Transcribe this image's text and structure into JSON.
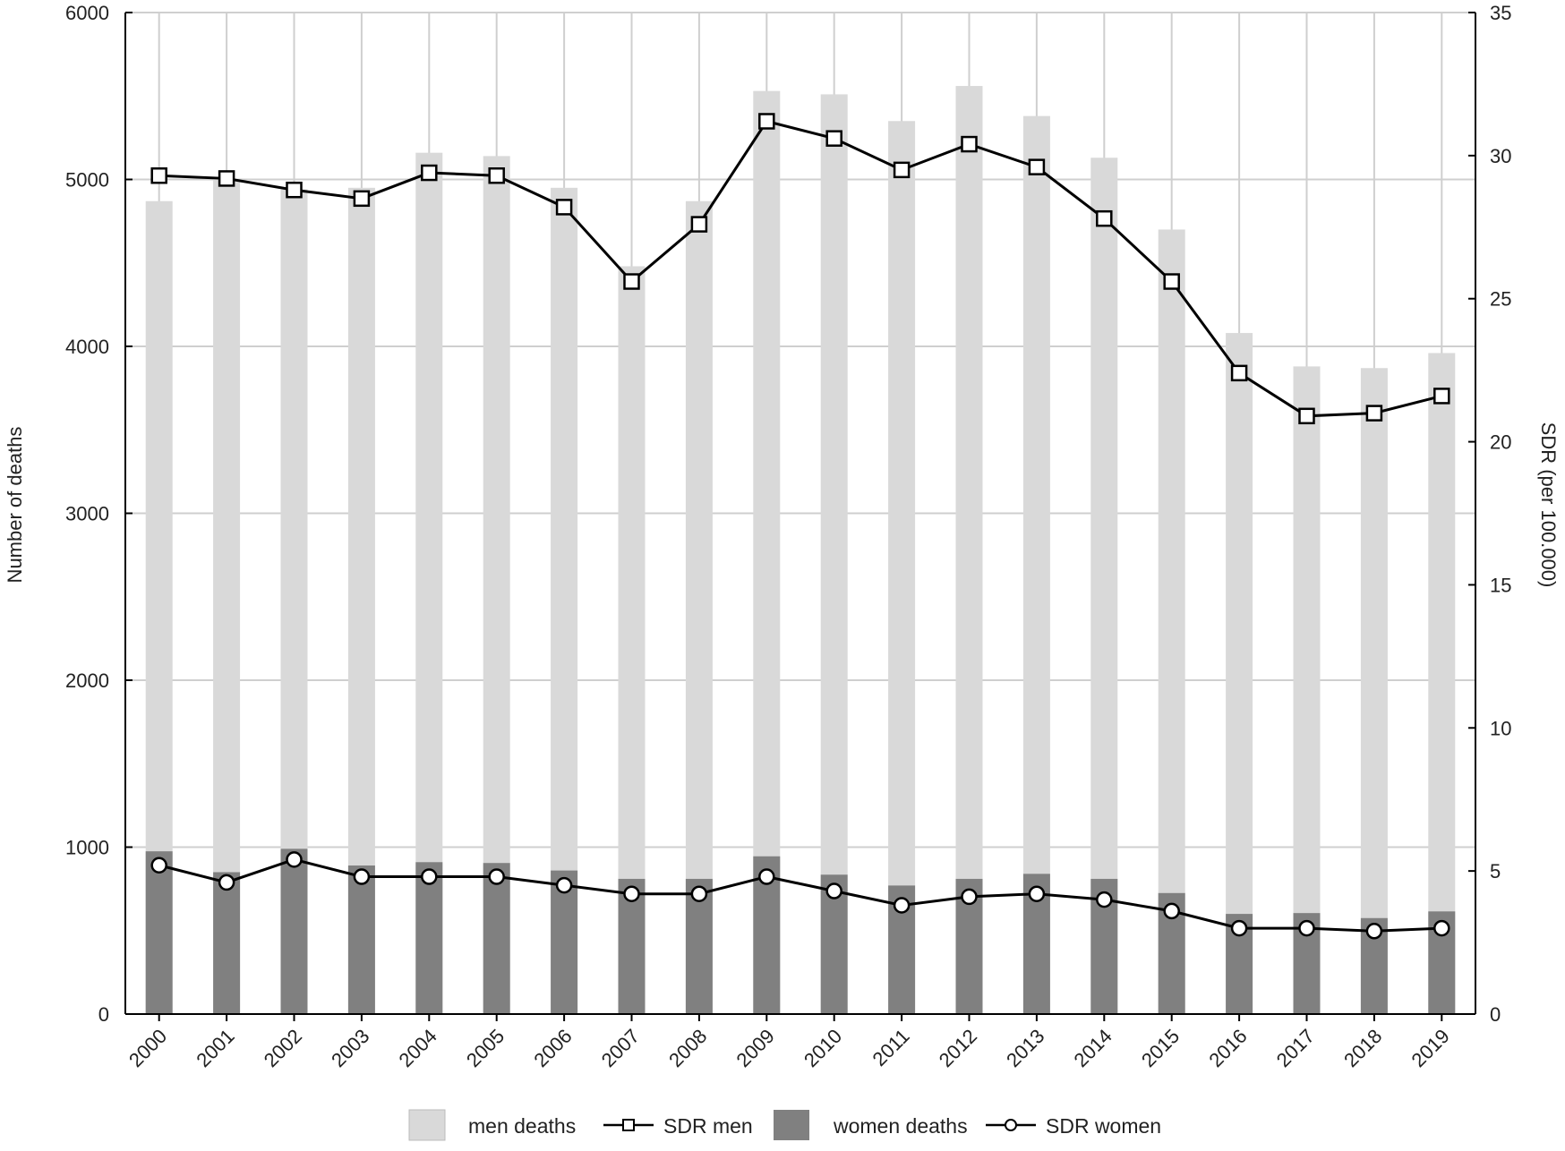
{
  "chart_data": {
    "type": "bar",
    "categories": [
      "2000",
      "2001",
      "2002",
      "2003",
      "2004",
      "2005",
      "2006",
      "2007",
      "2008",
      "2009",
      "2010",
      "2011",
      "2012",
      "2013",
      "2014",
      "2015",
      "2016",
      "2017",
      "2018",
      "2019"
    ],
    "series": [
      {
        "name": "men deaths",
        "kind": "bar",
        "axis": "left",
        "color": "#d9d9d9",
        "values": [
          4870,
          5000,
          4940,
          4950,
          5160,
          5140,
          4950,
          4480,
          4870,
          5530,
          5510,
          5350,
          5560,
          5380,
          5130,
          4700,
          4080,
          3880,
          3870,
          3960
        ]
      },
      {
        "name": "women deaths",
        "kind": "bar",
        "axis": "left",
        "color": "#808080",
        "values": [
          975,
          850,
          990,
          890,
          910,
          905,
          860,
          810,
          810,
          945,
          835,
          770,
          810,
          840,
          810,
          725,
          600,
          605,
          575,
          615
        ]
      },
      {
        "name": "SDR men",
        "kind": "line",
        "axis": "right",
        "marker": "square",
        "color": "#000000",
        "values": [
          29.3,
          29.2,
          28.8,
          28.5,
          29.4,
          29.3,
          28.2,
          25.6,
          27.6,
          31.2,
          30.6,
          29.5,
          30.4,
          29.6,
          27.8,
          25.6,
          22.4,
          20.9,
          21.0,
          21.6
        ]
      },
      {
        "name": "SDR women",
        "kind": "line",
        "axis": "right",
        "marker": "circle",
        "color": "#000000",
        "values": [
          5.2,
          4.6,
          5.4,
          4.8,
          4.8,
          4.8,
          4.5,
          4.2,
          4.2,
          4.8,
          4.3,
          3.8,
          4.1,
          4.2,
          4.0,
          3.6,
          3.0,
          3.0,
          2.9,
          3.0
        ]
      }
    ],
    "ylabel": "Number of deaths",
    "ylim": [
      0,
      6000
    ],
    "yticks": [
      0,
      1000,
      2000,
      3000,
      4000,
      5000,
      6000
    ],
    "y2label": "SDR (per 100.000)",
    "y2lim": [
      0,
      35
    ],
    "y2ticks": [
      0,
      5,
      10,
      15,
      20,
      25,
      30,
      35
    ],
    "grid": true,
    "legend_position": "bottom"
  }
}
